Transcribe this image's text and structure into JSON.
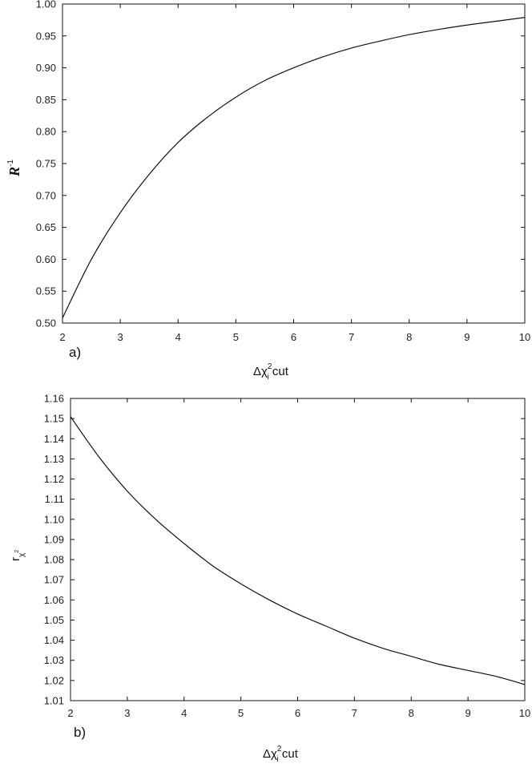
{
  "chart_data": [
    {
      "type": "line",
      "panel_label": "a)",
      "xlabel": {
        "prefix": "Δχ",
        "sup": "2",
        "sub": "i",
        "suffix": " cut"
      },
      "ylabel": {
        "base": "R",
        "sup": "-1"
      },
      "xlim": [
        2,
        10
      ],
      "ylim": [
        0.5,
        1.0
      ],
      "xticks": [
        "2",
        "3",
        "4",
        "5",
        "6",
        "7",
        "8",
        "9",
        "10"
      ],
      "yticks": [
        "0.50",
        "0.55",
        "0.60",
        "0.65",
        "0.70",
        "0.75",
        "0.80",
        "0.85",
        "0.90",
        "0.95",
        "1.00"
      ],
      "grid": false,
      "series": [
        {
          "x": [
            2,
            2.5,
            3,
            3.5,
            4,
            4.5,
            5,
            5.5,
            6,
            6.5,
            7,
            7.5,
            8,
            8.5,
            9,
            9.5,
            10
          ],
          "y": [
            0.508,
            0.6,
            0.673,
            0.733,
            0.783,
            0.822,
            0.854,
            0.88,
            0.9,
            0.917,
            0.931,
            0.942,
            0.952,
            0.96,
            0.967,
            0.973,
            0.979
          ]
        }
      ]
    },
    {
      "type": "line",
      "panel_label": "b)",
      "xlabel": {
        "prefix": "Δχ",
        "sup": "2",
        "sub": "i",
        "suffix": " cut"
      },
      "ylabel": {
        "base": "r",
        "sub": "χ",
        "subsup": "2"
      },
      "xlim": [
        2,
        10
      ],
      "ylim": [
        1.01,
        1.16
      ],
      "xticks": [
        "2",
        "3",
        "4",
        "5",
        "6",
        "7",
        "8",
        "9",
        "10"
      ],
      "yticks": [
        "1.01",
        "1.02",
        "1.03",
        "1.04",
        "1.05",
        "1.06",
        "1.07",
        "1.08",
        "1.09",
        "1.10",
        "1.11",
        "1.12",
        "1.13",
        "1.14",
        "1.15",
        "1.16"
      ],
      "grid": false,
      "series": [
        {
          "x": [
            2,
            2.5,
            3,
            3.5,
            4,
            4.5,
            5,
            5.5,
            6,
            6.5,
            7,
            7.5,
            8,
            8.5,
            9,
            9.5,
            10
          ],
          "y": [
            1.151,
            1.131,
            1.114,
            1.1,
            1.088,
            1.077,
            1.068,
            1.06,
            1.053,
            1.047,
            1.041,
            1.036,
            1.032,
            1.028,
            1.025,
            1.022,
            1.018
          ]
        }
      ]
    }
  ]
}
